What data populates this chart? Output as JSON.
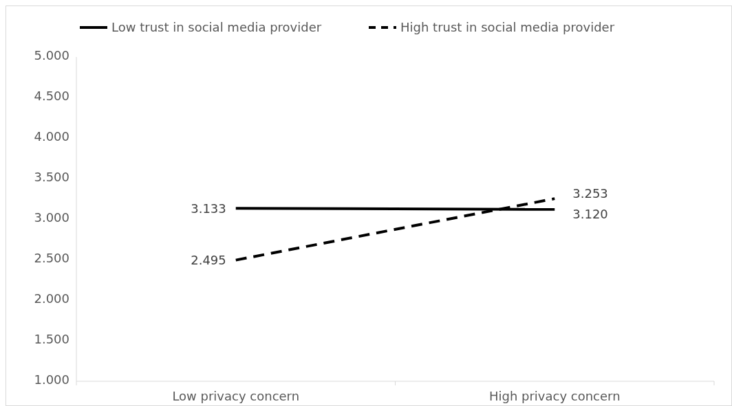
{
  "chart_data": {
    "type": "line",
    "categories": [
      "Low privacy concern",
      "High privacy concern"
    ],
    "series": [
      {
        "name": "Low trust in social media provider",
        "color": "#000000",
        "line_style": "solid",
        "values": [
          3.133,
          3.12
        ],
        "value_labels": [
          "3.133",
          "3.120"
        ]
      },
      {
        "name": "High trust in social media provider",
        "color": "#000000",
        "line_style": "dashed",
        "values": [
          2.495,
          3.253
        ],
        "value_labels": [
          "2.495",
          "3.253"
        ]
      }
    ],
    "ylim": [
      1,
      5
    ],
    "yticks": [
      {
        "value": 1,
        "label": "1.000"
      },
      {
        "value": 1.5,
        "label": "1.500"
      },
      {
        "value": 2,
        "label": "2.000"
      },
      {
        "value": 2.5,
        "label": "2.500"
      },
      {
        "value": 3,
        "label": "3.000"
      },
      {
        "value": 3.5,
        "label": "3.500"
      },
      {
        "value": 4,
        "label": "4.000"
      },
      {
        "value": 4.5,
        "label": "4.500"
      },
      {
        "value": 5,
        "label": "5.000"
      }
    ],
    "grid": false,
    "legend": "top",
    "marker": "none"
  }
}
